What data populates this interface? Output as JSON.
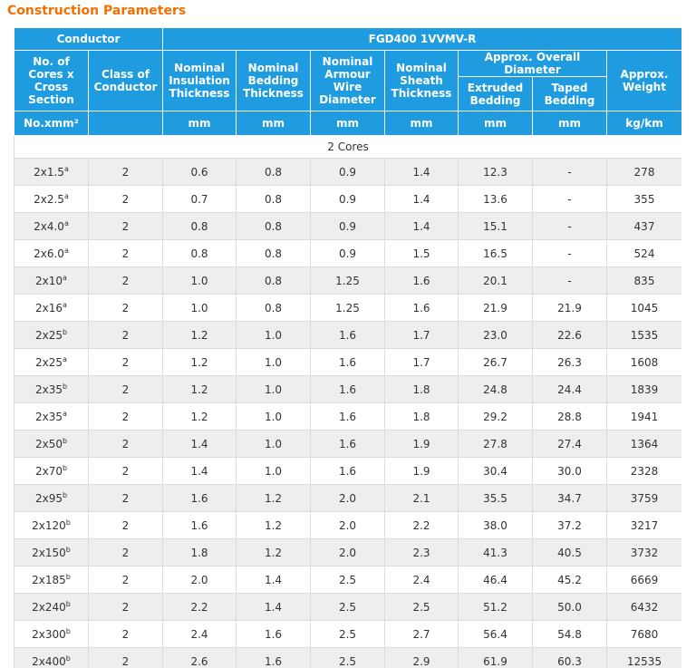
{
  "title": "Construction Parameters",
  "table": {
    "group": [
      "Conductor",
      "FGD400 1VVMV-R"
    ],
    "columns": [
      "No. of Cores x Cross Section",
      "Class of Conductor",
      "Nominal Insulation Thickness",
      "Nominal Bedding Thickness",
      "Nominal Armour Wire Diameter",
      "Nominal Sheath Thickness",
      "Approx. Overall Diameter",
      "Approx. Weight"
    ],
    "sub": [
      "Extruded Bedding",
      "Taped Bedding"
    ],
    "units": [
      "No.xmm²",
      "mm",
      "mm",
      "mm",
      "mm",
      "mm",
      "mm",
      "kg/km"
    ],
    "section": "2 Cores",
    "rows": [
      [
        "2x1.5",
        "a",
        "2",
        "0.6",
        "0.8",
        "0.9",
        "1.4",
        "12.3",
        "-",
        "278"
      ],
      [
        "2x2.5",
        "a",
        "2",
        "0.7",
        "0.8",
        "0.9",
        "1.4",
        "13.6",
        "-",
        "355"
      ],
      [
        "2x4.0",
        "a",
        "2",
        "0.8",
        "0.8",
        "0.9",
        "1.4",
        "15.1",
        "-",
        "437"
      ],
      [
        "2x6.0",
        "a",
        "2",
        "0.8",
        "0.8",
        "0.9",
        "1.5",
        "16.5",
        "-",
        "524"
      ],
      [
        "2x10",
        "a",
        "2",
        "1.0",
        "0.8",
        "1.25",
        "1.6",
        "20.1",
        "-",
        "835"
      ],
      [
        "2x16",
        "a",
        "2",
        "1.0",
        "0.8",
        "1.25",
        "1.6",
        "21.9",
        "21.9",
        "1045"
      ],
      [
        "2x25",
        "b",
        "2",
        "1.2",
        "1.0",
        "1.6",
        "1.7",
        "23.0",
        "22.6",
        "1535"
      ],
      [
        "2x25",
        "a",
        "2",
        "1.2",
        "1.0",
        "1.6",
        "1.7",
        "26.7",
        "26.3",
        "1608"
      ],
      [
        "2x35",
        "b",
        "2",
        "1.2",
        "1.0",
        "1.6",
        "1.8",
        "24.8",
        "24.4",
        "1839"
      ],
      [
        "2x35",
        "a",
        "2",
        "1.2",
        "1.0",
        "1.6",
        "1.8",
        "29.2",
        "28.8",
        "1941"
      ],
      [
        "2x50",
        "b",
        "2",
        "1.4",
        "1.0",
        "1.6",
        "1.9",
        "27.8",
        "27.4",
        "1364"
      ],
      [
        "2x70",
        "b",
        "2",
        "1.4",
        "1.0",
        "1.6",
        "1.9",
        "30.4",
        "30.0",
        "2328"
      ],
      [
        "2x95",
        "b",
        "2",
        "1.6",
        "1.2",
        "2.0",
        "2.1",
        "35.5",
        "34.7",
        "3759"
      ],
      [
        "2x120",
        "b",
        "2",
        "1.6",
        "1.2",
        "2.0",
        "2.2",
        "38.0",
        "37.2",
        "3217"
      ],
      [
        "2x150",
        "b",
        "2",
        "1.8",
        "1.2",
        "2.0",
        "2.3",
        "41.3",
        "40.5",
        "3732"
      ],
      [
        "2x185",
        "b",
        "2",
        "2.0",
        "1.4",
        "2.5",
        "2.4",
        "46.4",
        "45.2",
        "6669"
      ],
      [
        "2x240",
        "b",
        "2",
        "2.2",
        "1.4",
        "2.5",
        "2.5",
        "51.2",
        "50.0",
        "6432"
      ],
      [
        "2x300",
        "b",
        "2",
        "2.4",
        "1.6",
        "2.5",
        "2.7",
        "56.4",
        "54.8",
        "7680"
      ],
      [
        "2x400",
        "b",
        "2",
        "2.6",
        "1.6",
        "2.5",
        "2.9",
        "61.9",
        "60.3",
        "12535"
      ]
    ]
  }
}
